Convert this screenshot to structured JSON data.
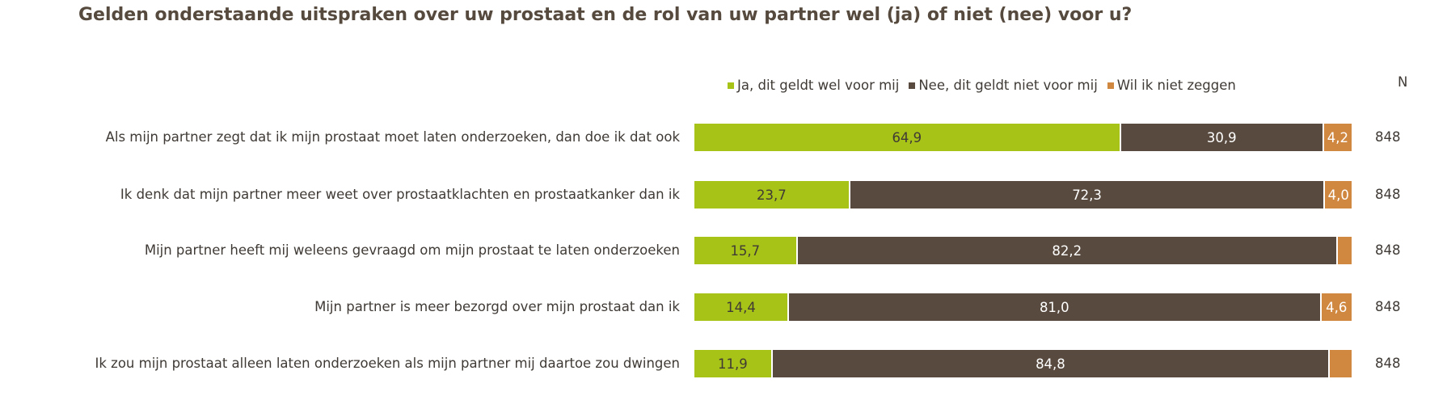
{
  "chart_data": {
    "type": "bar",
    "orientation": "horizontal",
    "stacked": true,
    "title": "Gelden onderstaande uitspraken over uw prostaat en de rol van uw partner wel (ja) of niet (nee) voor u?",
    "xlim": [
      0,
      100
    ],
    "legend_position": "top",
    "n_header": "N",
    "categories": [
      "Als mijn partner zegt dat ik mijn prostaat moet laten onderzoeken, dan doe ik dat ook",
      "Ik denk dat mijn partner meer weet over prostaatklachten en prostaatkanker dan ik",
      "Mijn partner heeft mij weleens gevraagd om mijn prostaat te laten onderzoeken",
      "Mijn partner is meer bezorgd over mijn prostaat dan ik",
      "Ik zou mijn prostaat alleen laten onderzoeken als mijn partner mij daartoe zou dwingen"
    ],
    "n": [
      "848",
      "848",
      "848",
      "848",
      "848"
    ],
    "series": [
      {
        "name": "Ja, dit geldt wel voor mij",
        "color": "#a8c317",
        "text_color": "#3f3a35",
        "values": [
          64.9,
          23.7,
          15.7,
          14.4,
          11.9
        ],
        "labels": [
          "64,9",
          "23,7",
          "15,7",
          "14,4",
          "11,9"
        ]
      },
      {
        "name": "Nee, dit geldt niet voor mij",
        "color": "#584a3f",
        "text_color": "#ffffff",
        "values": [
          30.9,
          72.3,
          82.2,
          81.0,
          84.8
        ],
        "labels": [
          "30,9",
          "72,3",
          "82,2",
          "81,0",
          "84,8"
        ]
      },
      {
        "name": "Wil ik niet zeggen",
        "color": "#d08740",
        "text_color": "#ffffff",
        "values": [
          4.2,
          4.0,
          2.1,
          4.6,
          3.3
        ],
        "labels": [
          "4,2",
          "4,0",
          null,
          "4,6",
          null
        ]
      }
    ]
  }
}
